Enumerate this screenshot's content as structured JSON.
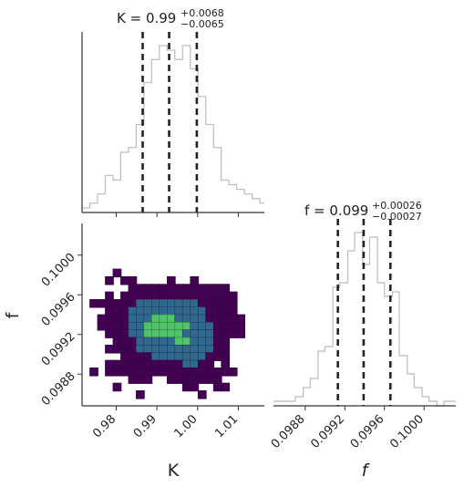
{
  "chart_data": [
    {
      "type": "histogram",
      "panel": "marginal-K",
      "title": {
        "main": "K = 0.99",
        "plus": "+0.0068",
        "minus": "−0.0065"
      },
      "xlim": [
        0.9716,
        1.0164
      ],
      "x_ticks": [
        "0.98",
        "0.99",
        "1.00",
        "1.01"
      ],
      "x_tick_values": [
        0.98,
        0.99,
        1.0,
        1.01
      ],
      "quantile_lines": [
        0.9865,
        0.993,
        0.9998
      ],
      "bin_edges": [
        0.9716,
        0.9735,
        0.9754,
        0.9773,
        0.9792,
        0.9811,
        0.983,
        0.9849,
        0.9868,
        0.9887,
        0.9906,
        0.9925,
        0.9944,
        0.9963,
        0.9982,
        1.0001,
        1.002,
        1.0039,
        1.0058,
        1.0077,
        1.0096,
        1.0115,
        1.0134,
        1.0153,
        1.0164
      ],
      "counts": [
        1,
        2,
        4,
        8,
        7,
        13,
        14,
        19,
        28,
        33,
        36,
        35,
        33,
        36,
        31,
        25,
        19,
        14,
        7,
        6,
        5,
        4,
        3,
        2
      ],
      "line_color": "#bbbbbb",
      "quantile_color": "#222222"
    },
    {
      "type": "histogram",
      "panel": "marginal-f",
      "title": {
        "main": "f = 0.099",
        "plus": "+0.00026",
        "minus": "−0.00027"
      },
      "xlim": [
        0.09848,
        0.10032
      ],
      "x_ticks": [
        "0.0988",
        "0.0992",
        "0.0996",
        "0.1000"
      ],
      "x_tick_values": [
        0.0988,
        0.0992,
        0.0996,
        0.1
      ],
      "quantile_lines": [
        0.09913,
        0.09939,
        0.09966
      ],
      "bin_edges": [
        0.09848,
        0.09855,
        0.09863,
        0.0987,
        0.09878,
        0.09885,
        0.09893,
        0.099,
        0.09908,
        0.09915,
        0.09923,
        0.0993,
        0.09938,
        0.09945,
        0.09953,
        0.0996,
        0.09968,
        0.09975,
        0.09983,
        0.0999,
        0.09998,
        0.10005,
        0.10013,
        0.1002,
        0.10032
      ],
      "counts": [
        1,
        1,
        1,
        2,
        4,
        6,
        12,
        13,
        26,
        27,
        34,
        38,
        31,
        37,
        27,
        24,
        25,
        11,
        7,
        4,
        2,
        1,
        0,
        1
      ],
      "line_color": "#bbbbbb",
      "quantile_color": "#222222"
    },
    {
      "type": "heatmap",
      "panel": "joint-K-f",
      "xlabel": "K",
      "ylabel": "f",
      "xlim": [
        0.9716,
        1.0164
      ],
      "ylim": [
        0.09848,
        0.10032
      ],
      "x_ticks": [
        "0.98",
        "0.99",
        "1.00",
        "1.01"
      ],
      "x_tick_values": [
        0.98,
        0.99,
        1.0,
        1.01
      ],
      "y_ticks": [
        "0.0988",
        "0.0992",
        "0.0996",
        "0.1000"
      ],
      "y_tick_values": [
        0.0988,
        0.0992,
        0.0996,
        0.1
      ],
      "levels": [
        {
          "level": 1,
          "color": "#440154",
          "description": "outer density region"
        },
        {
          "level": 2,
          "color": "#31688e",
          "description": "middle density region"
        },
        {
          "level": 3,
          "color": "#50c468",
          "description": "core density region"
        }
      ],
      "contour_color": "#1a1a1a",
      "grid_x0": 0.9716,
      "grid_dx": 0.0019,
      "grid_y0": 0.09848,
      "grid_dy": 7.67e-05,
      "grid": [
        "........................",
        "........................",
        "....1...................",
        "...1.11....1..1.........",
        "......1111111111111.....",
        "...1.111111111111111....",
        ".1111112222222211111....",
        "...11122222222221111....",
        "..1111222333222211111...",
        "..1111223333332221111...",
        "...111223333322221111...",
        "....111222223322211.....",
        "...1111222222222211.....",
        ".....11112222222111.....",
        "...11111111112211.1.....",
        ".1.11111111111111111....",
        "......111..1111111......",
        "....1........11..11.....",
        ".......1.......1........",
        "........................"
      ]
    }
  ]
}
